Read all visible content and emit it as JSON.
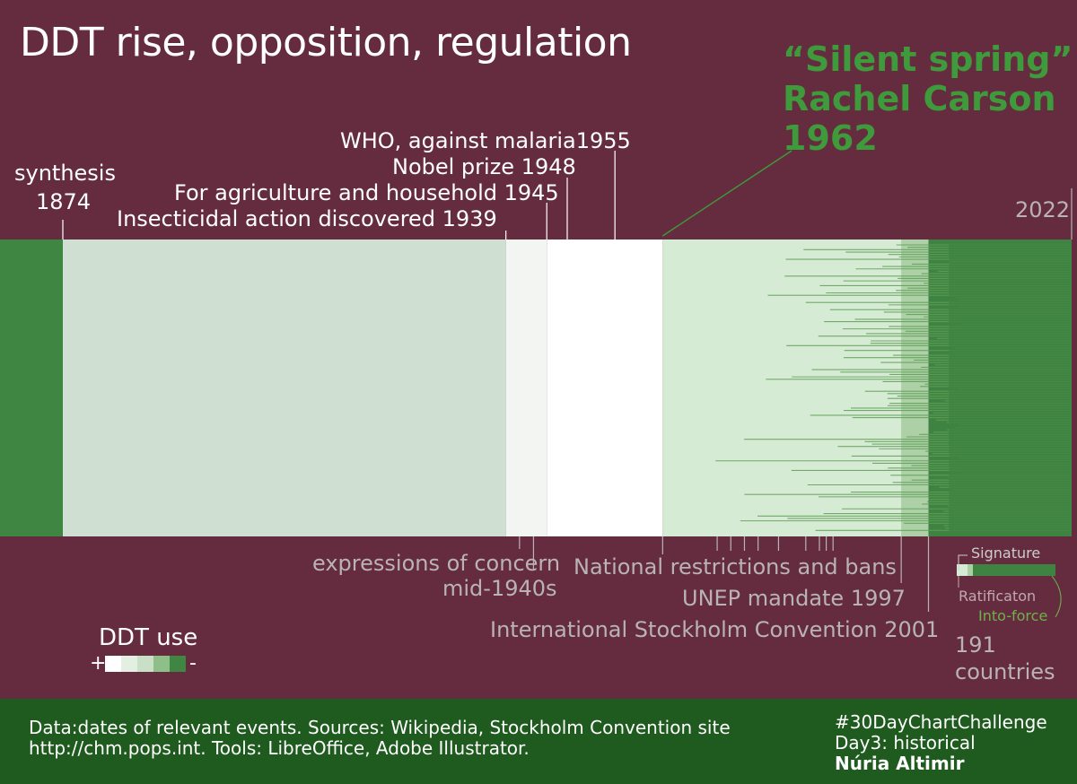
{
  "title": "DDT rise, opposition, regulation",
  "labels": {
    "synthesis_line1": "synthesis",
    "synthesis_line2": "1874",
    "who": "WHO, against malaria1955",
    "nobel": "Nobel prize 1948",
    "agriculture": "For agriculture and household 1945",
    "insecticidal": "Insecticidal action discovered 1939",
    "year_end": "2022",
    "silent_line1": "“Silent spring”",
    "silent_line2": "Rachel Carson",
    "silent_line3": "1962",
    "concern_line1": "expressions of concern",
    "concern_line2": "mid-1940s",
    "national": "National restrictions and bans",
    "unep": "UNEP mandate 1997",
    "stockholm": "International Stockholm Convention 2001",
    "countries_line1": "191",
    "countries_line2": "countries"
  },
  "country_legend": {
    "signature": "Signature",
    "ratification": "Ratificaton",
    "into_force": "Into-force"
  },
  "use_legend": {
    "title": "DDT use",
    "plus": "+",
    "minus": "-",
    "colors": [
      "#ffffff",
      "#e3efe1",
      "#c9e0c6",
      "#8fbf88",
      "#3e8641"
    ]
  },
  "footer": {
    "source_line1": "Data:dates of relevant events. Sources: Wikipedia, Stockholm Convention site",
    "source_line2": "http://chm.pops.int.  Tools: LibreOffice, Adobe Illustrator.",
    "challenge": "#30DayChartChallenge",
    "day": "Day3: historical",
    "author": "Núria Altimir"
  },
  "colors": {
    "background": "#652c40",
    "accent_green": "#3e9a3b",
    "footer_bg": "#1f5b1f"
  },
  "chart_data": {
    "type": "timeline",
    "start_year": 1874,
    "end_year": 2022,
    "periods": [
      {
        "from": 1874,
        "to": 1939,
        "use_level": 2
      },
      {
        "from": 1939,
        "to": 1945,
        "use_level": 1
      },
      {
        "from": 1945,
        "to": 1962,
        "use_level": 0
      },
      {
        "from": 1962,
        "to": 2001,
        "use_level": 1
      },
      {
        "from": 2001,
        "to": 2022,
        "use_level": 4
      }
    ],
    "events": [
      {
        "year": 1874,
        "label": "synthesis 1874"
      },
      {
        "year": 1939,
        "label": "Insecticidal action discovered 1939"
      },
      {
        "year": 1945,
        "label": "For agriculture and household 1945"
      },
      {
        "year": 1948,
        "label": "Nobel prize 1948"
      },
      {
        "year": 1955,
        "label": "WHO, against malaria1955"
      },
      {
        "year": 1962,
        "label": "Silent spring Rachel Carson 1962"
      },
      {
        "year": 1997,
        "label": "UNEP mandate 1997"
      },
      {
        "year": 2001,
        "label": "International Stockholm Convention 2001"
      },
      {
        "year": 2022,
        "label": "2022"
      }
    ],
    "concern_ticks": [
      1941,
      1942
    ],
    "national_bans": [
      1962,
      1970,
      1972,
      1974,
      1976,
      1979,
      1983,
      1985,
      1986,
      1987
    ],
    "countries": 191
  }
}
